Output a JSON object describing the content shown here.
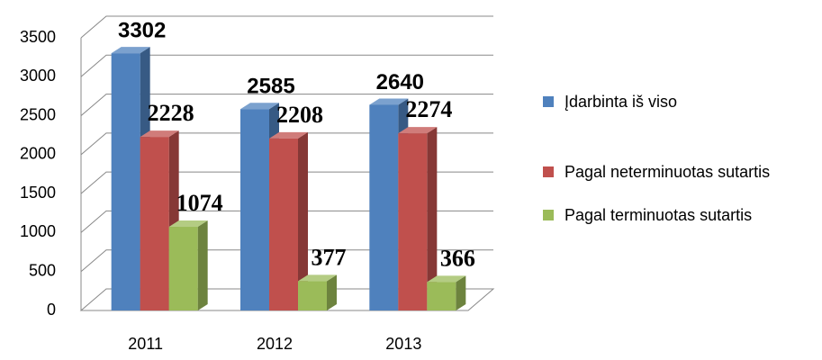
{
  "chart_data": {
    "type": "bar3d",
    "categories": [
      "2011",
      "2012",
      "2013"
    ],
    "series": [
      {
        "name": "Įdarbinta iš viso",
        "color": "#4f81bd",
        "values": [
          3302,
          2585,
          2640
        ]
      },
      {
        "name": "Pagal neterminuotas sutartis",
        "color": "#c0504d",
        "values": [
          2228,
          2208,
          2274
        ]
      },
      {
        "name": "Pagal terminuotas sutartis",
        "color": "#9bbb59",
        "values": [
          1074,
          377,
          366
        ]
      }
    ],
    "ylim": [
      0,
      3500
    ],
    "yticks": [
      0,
      500,
      1000,
      1500,
      2000,
      2500,
      3000,
      3500
    ],
    "grid": true,
    "legend": "right"
  }
}
